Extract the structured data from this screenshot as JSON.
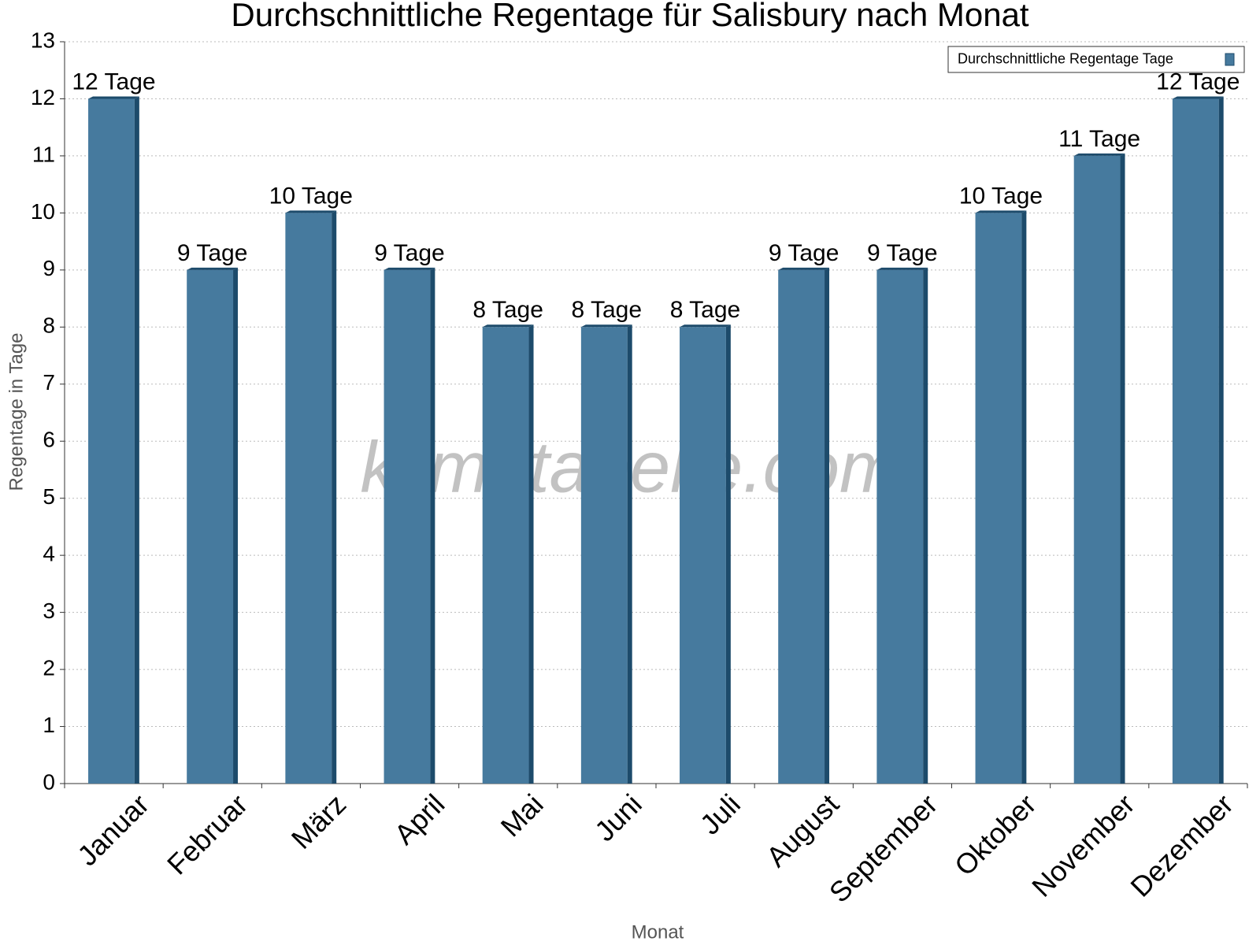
{
  "chart_data": {
    "type": "bar",
    "title": "Durchschnittliche Regentage für Salisbury nach Monat",
    "x_label": "Monat",
    "y_label": "Regentage in Tage",
    "watermark": "klimatabelle.com",
    "categories": [
      "Januar",
      "Februar",
      "März",
      "April",
      "Mai",
      "Juni",
      "Juli",
      "August",
      "September",
      "Oktober",
      "November",
      "Dezember"
    ],
    "series": [
      {
        "name": "Durchschnittliche Regentage Tage",
        "color": "#467a9e",
        "values": [
          12,
          9,
          10,
          9,
          8,
          8,
          8,
          9,
          9,
          10,
          11,
          12
        ],
        "value_labels": [
          "12 Tage",
          "9 Tage",
          "10 Tage",
          "9 Tage",
          "8 Tage",
          "8 Tage",
          "8 Tage",
          "9 Tage",
          "9 Tage",
          "10 Tage",
          "11 Tage",
          "12 Tage"
        ]
      }
    ],
    "ylim": [
      0,
      13
    ],
    "yticks": [
      0,
      1,
      2,
      3,
      4,
      5,
      6,
      7,
      8,
      9,
      10,
      11,
      12,
      13
    ],
    "grid": true,
    "legend": "top-right"
  }
}
